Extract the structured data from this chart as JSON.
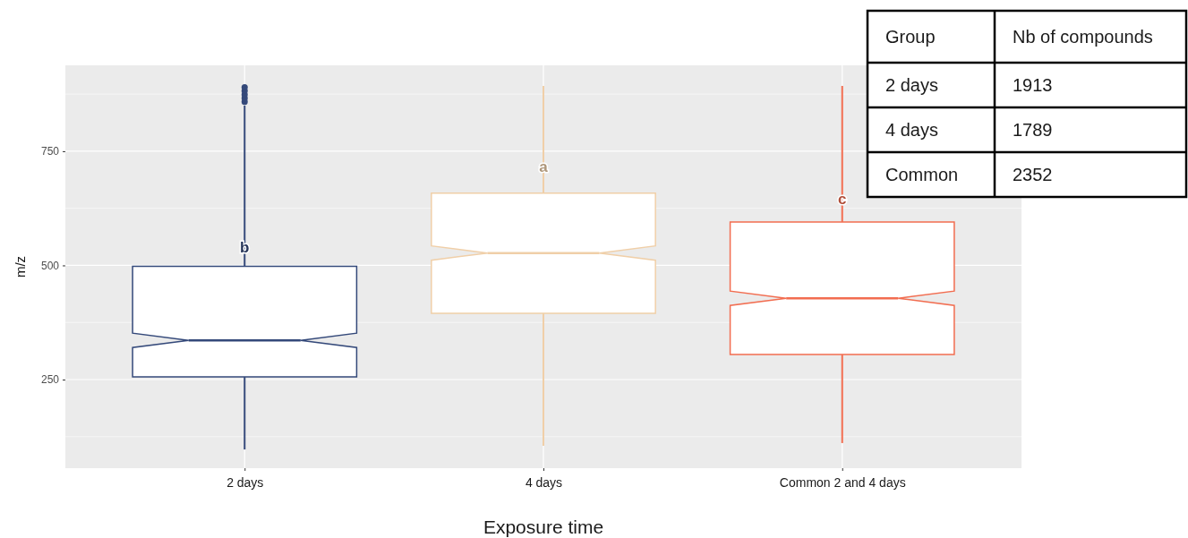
{
  "chart_data": {
    "type": "box",
    "xlabel": "Exposure time",
    "ylabel": "m/z",
    "categories": [
      "2 days",
      "4 days",
      "Common 2 and 4 days"
    ],
    "boxes": [
      {
        "low": 97,
        "q1": 256,
        "median": 336,
        "q3": 498,
        "high": 850,
        "outliers": [
          858,
          866,
          874,
          882,
          890
        ]
      },
      {
        "low": 105,
        "q1": 395,
        "median": 527,
        "q3": 658,
        "high": 893
      },
      {
        "low": 111,
        "q1": 305,
        "median": 428,
        "q3": 595,
        "high": 893
      }
    ],
    "colors": [
      "#34497a",
      "#f0cfa8",
      "#f26d50"
    ],
    "ylim": [
      56,
      938
    ],
    "yticks": [
      250,
      500,
      750
    ],
    "grid": true,
    "annotations": [
      {
        "text": "b",
        "x": "2 days",
        "y": 540
      },
      {
        "text": "a",
        "x": "4 days",
        "y": 717
      },
      {
        "text": "c",
        "x": "Common 2 and 4 days",
        "y": 646
      },
      "Group",
      "Nb of compounds",
      "2 days",
      "1913",
      "4 days",
      "1789",
      "Common",
      "2352"
    ]
  }
}
